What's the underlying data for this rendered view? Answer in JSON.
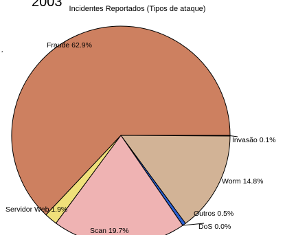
{
  "year": "2003",
  "chart_data": {
    "type": "pie",
    "title": "Incidentes Reportados (Tipos de ataque)",
    "corner_mark": "’",
    "slices": [
      {
        "name": "Invasão",
        "value": 0.1,
        "label": "Invasão  0.1%",
        "color": "#c9a27e"
      },
      {
        "name": "Worm",
        "value": 14.8,
        "label": "Worm  14.8%",
        "color": "#d2b396"
      },
      {
        "name": "Outros",
        "value": 0.5,
        "label": "Outros  0.5%",
        "color": "#2a5fd0"
      },
      {
        "name": "DoS",
        "value": 0.0,
        "label": "DoS  0.0%",
        "color": "#1f3a8a"
      },
      {
        "name": "Scan",
        "value": 19.7,
        "label": "Scan  19.7%",
        "color": "#efb3b3"
      },
      {
        "name": "Servidor Web",
        "value": 1.9,
        "label": "Servidor Web  1.9%",
        "color": "#efe07a"
      },
      {
        "name": "Fraude",
        "value": 62.9,
        "label": "Fraude  62.9%",
        "color": "#cd8060"
      }
    ]
  }
}
